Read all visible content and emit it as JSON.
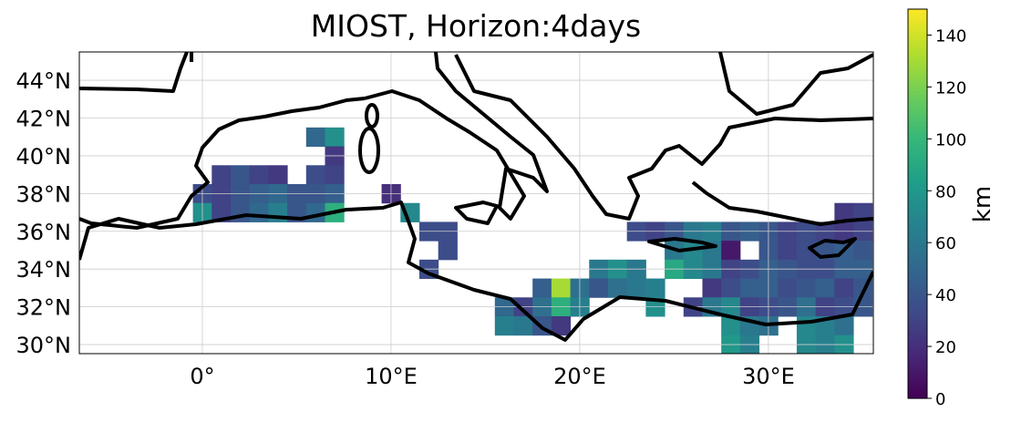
{
  "chart_data": {
    "type": "gridmap",
    "title": "MIOST, Horizon:4days",
    "colormap": "viridis",
    "clim": [
      0,
      150
    ],
    "colorbar_label": "km",
    "xlim": [
      -6.52,
      35.56
    ],
    "ylim": [
      29.52,
      45.5
    ],
    "xticks": [
      {
        "value": 0,
        "label": "0°"
      },
      {
        "value": 10,
        "label": "10°E"
      },
      {
        "value": 20,
        "label": "20°E"
      },
      {
        "value": 30,
        "label": "30°E"
      }
    ],
    "yticks": [
      {
        "value": 30,
        "label": "30°N"
      },
      {
        "value": 32,
        "label": "32°N"
      },
      {
        "value": 34,
        "label": "34°N"
      },
      {
        "value": 36,
        "label": "36°N"
      },
      {
        "value": 38,
        "label": "38°N"
      },
      {
        "value": 40,
        "label": "40°N"
      },
      {
        "value": 42,
        "label": "42°N"
      },
      {
        "value": 44,
        "label": "44°N"
      }
    ],
    "cticks": [
      0,
      20,
      40,
      60,
      80,
      100,
      120,
      140
    ],
    "grid": true,
    "lon": [
      6,
      7,
      7,
      1,
      2,
      3,
      4,
      6,
      7,
      0,
      1,
      2,
      3,
      4,
      5,
      6,
      7,
      10,
      0,
      1,
      2,
      3,
      4,
      5,
      6,
      7,
      11,
      34,
      35,
      12,
      13,
      23,
      24,
      25,
      26,
      27,
      28,
      29,
      30,
      31,
      32,
      33,
      34,
      35,
      13,
      25,
      26,
      27,
      28,
      30,
      31,
      32,
      33,
      34,
      35,
      12,
      21,
      22,
      23,
      25,
      26,
      27,
      28,
      29,
      30,
      31,
      32,
      33,
      34,
      35,
      18,
      19,
      20,
      21,
      22,
      23,
      24,
      27,
      28,
      29,
      30,
      31,
      32,
      33,
      34,
      35,
      16,
      17,
      18,
      19,
      20,
      24,
      26,
      27,
      28,
      29,
      30,
      31,
      32,
      33,
      34,
      35,
      16,
      17,
      18,
      19,
      28,
      29,
      30,
      32,
      33,
      34,
      28,
      29,
      32,
      33,
      34
    ],
    "lat": [
      41,
      41,
      40,
      39,
      39,
      39,
      39,
      39,
      39,
      38,
      38,
      38,
      38,
      38,
      38,
      38,
      38,
      38,
      37,
      37,
      37,
      37,
      37,
      37,
      37,
      37,
      37,
      37,
      37,
      36,
      36,
      36,
      36,
      36,
      36,
      36,
      36,
      36,
      36,
      36,
      36,
      36,
      36,
      36,
      35,
      35,
      35,
      35,
      35,
      35,
      35,
      35,
      35,
      35,
      35,
      34,
      34,
      34,
      34,
      34,
      34,
      34,
      34,
      34,
      34,
      34,
      34,
      34,
      34,
      34,
      33,
      33,
      33,
      33,
      33,
      33,
      33,
      33,
      33,
      33,
      33,
      33,
      33,
      33,
      33,
      33,
      32,
      32,
      32,
      32,
      32,
      32,
      32,
      32,
      32,
      32,
      32,
      32,
      32,
      32,
      32,
      32,
      31,
      31,
      31,
      31,
      31,
      31,
      31,
      31,
      31,
      31,
      30,
      30,
      30,
      30,
      30
    ],
    "values": [
      50,
      75,
      25,
      30,
      40,
      30,
      25,
      35,
      30,
      35,
      30,
      40,
      45,
      50,
      40,
      40,
      45,
      20,
      75,
      30,
      40,
      50,
      65,
      40,
      50,
      95,
      70,
      25,
      30,
      35,
      35,
      35,
      30,
      40,
      60,
      65,
      40,
      45,
      40,
      30,
      35,
      30,
      25,
      30,
      35,
      60,
      70,
      60,
      10,
      40,
      30,
      35,
      40,
      45,
      40,
      35,
      60,
      75,
      60,
      90,
      70,
      60,
      30,
      35,
      45,
      40,
      35,
      35,
      45,
      45,
      45,
      130,
      55,
      40,
      55,
      60,
      65,
      25,
      35,
      45,
      45,
      35,
      40,
      45,
      30,
      40,
      50,
      30,
      55,
      95,
      65,
      75,
      30,
      60,
      70,
      30,
      35,
      40,
      55,
      30,
      35,
      40,
      65,
      60,
      40,
      25,
      75,
      60,
      55,
      70,
      65,
      55,
      80,
      65,
      70,
      65,
      75
    ]
  }
}
